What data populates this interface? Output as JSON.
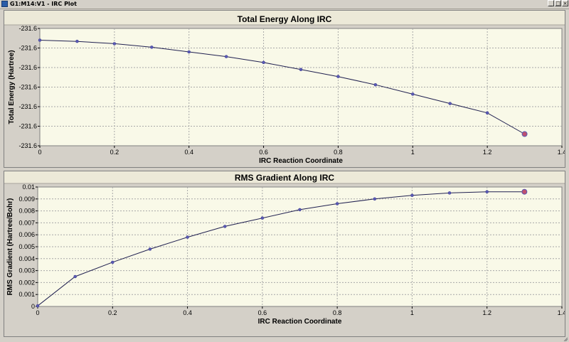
{
  "window": {
    "title": "G1:M14:V1 - IRC Plot",
    "buttons": [
      "_",
      "□",
      "×"
    ]
  },
  "chart_data": [
    {
      "type": "line",
      "title": "Total Energy Along IRC",
      "xlabel": "IRC Reaction Coordinate",
      "ylabel": "Total Energy (Hartree)",
      "xlim": [
        0,
        1.4
      ],
      "xticks": [
        0,
        0.2,
        0.4,
        0.6,
        0.8,
        1,
        1.2,
        1.4
      ],
      "yticks": [
        "-231.6",
        "-231.6",
        "-231.6",
        "-231.6",
        "-231.6",
        "-231.6",
        "-231.6"
      ],
      "grid": true,
      "x": [
        0,
        0.1,
        0.2,
        0.3,
        0.4,
        0.5,
        0.6,
        0.7,
        0.8,
        0.9,
        1.0,
        1.1,
        1.2,
        1.3
      ],
      "y_fraction": [
        0.9,
        0.89,
        0.87,
        0.84,
        0.8,
        0.76,
        0.71,
        0.65,
        0.59,
        0.52,
        0.44,
        0.36,
        0.28,
        0.1
      ],
      "last_point_highlighted": true
    },
    {
      "type": "line",
      "title": "RMS Gradient Along IRC",
      "xlabel": "IRC Reaction Coordinate",
      "ylabel": "RMS Gradient (Hartree/Bohr)",
      "xlim": [
        0,
        1.4
      ],
      "ylim": [
        0,
        0.01
      ],
      "xticks": [
        0,
        0.2,
        0.4,
        0.6,
        0.8,
        1,
        1.2,
        1.4
      ],
      "yticks": [
        "0",
        "0.001",
        "0.002",
        "0.003",
        "0.004",
        "0.005",
        "0.006",
        "0.007",
        "0.008",
        "0.009",
        "0.01"
      ],
      "grid": true,
      "x": [
        0,
        0.1,
        0.2,
        0.3,
        0.4,
        0.5,
        0.6,
        0.7,
        0.8,
        0.9,
        1.0,
        1.1,
        1.2,
        1.3
      ],
      "y": [
        5e-05,
        0.0025,
        0.0037,
        0.0048,
        0.0058,
        0.0067,
        0.0074,
        0.0081,
        0.0086,
        0.009,
        0.0093,
        0.0095,
        0.0096,
        0.0096
      ],
      "last_point_highlighted": true
    }
  ],
  "colors": {
    "plot_bg": "#f9f9e8",
    "line": "#202050",
    "marker": "#5a5ab4",
    "highlight": "#c05070",
    "grid": "#a8a8a8"
  }
}
